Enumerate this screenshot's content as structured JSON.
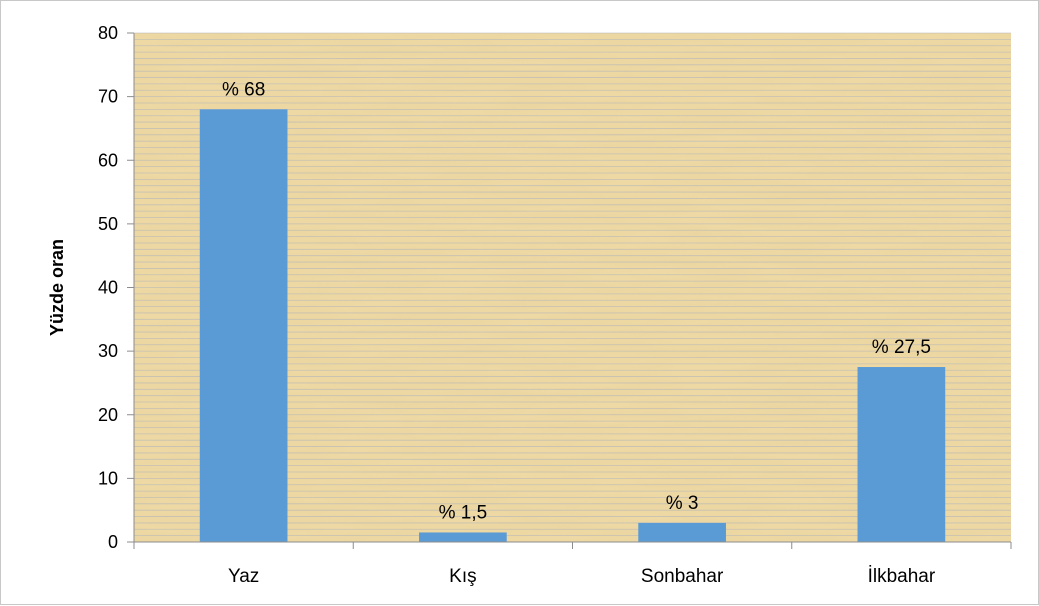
{
  "chart_data": {
    "type": "bar",
    "categories": [
      "Yaz",
      "Kış",
      "Sonbahar",
      "İlkbahar"
    ],
    "values": [
      68,
      1.5,
      3,
      27.5
    ],
    "data_labels": [
      "% 68",
      "% 1,5",
      "% 3",
      "% 27,5"
    ],
    "title": "",
    "xlabel": "",
    "ylabel": "Yüzde oran",
    "ylim": [
      0,
      80
    ],
    "yticks": [
      0,
      10,
      20,
      30,
      40,
      50,
      60,
      70,
      80
    ],
    "grid": true,
    "legend": "none"
  },
  "colors": {
    "bar": "#5b9bd5",
    "plot_background": "#eed9a4",
    "gridline": "#b9b9b9",
    "axis": "#8c8c8c"
  }
}
